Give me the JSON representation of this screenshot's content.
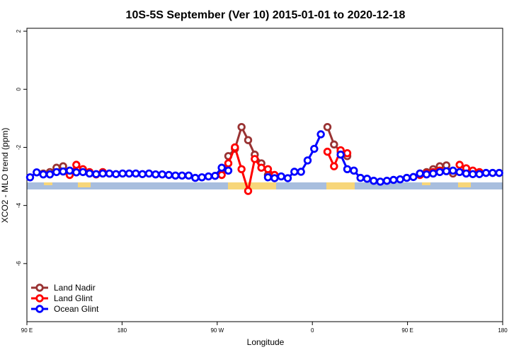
{
  "chart_data": {
    "type": "line",
    "title": "10S-5S September (Ver 10)   2015-01-01 to 2020-12-18",
    "x_label": "Longitude",
    "y_label": "XCO2 - MLO trend (ppm)",
    "xlim": [
      90,
      540
    ],
    "ylim": [
      -8,
      2.1
    ],
    "xticks": [
      {
        "value": 90,
        "label": "90 E"
      },
      {
        "value": 180,
        "label": "180"
      },
      {
        "value": 270,
        "label": "90 W"
      },
      {
        "value": 360,
        "label": "0"
      },
      {
        "value": 450,
        "label": "90 E"
      },
      {
        "value": 540,
        "label": "180"
      }
    ],
    "yticks": [
      -6,
      -4,
      -2,
      0,
      2
    ],
    "legend": "bottom-left",
    "series": [
      {
        "name": "Land Nadir",
        "color": "#993333",
        "x": [
          105.5,
          111.75,
          118,
          124.25,
          130.5,
          280.5,
          286.75,
          293,
          299.25,
          305.5,
          311.75,
          318,
          330.5,
          374.25,
          380.5,
          386.75,
          393,
          400,
          461.75,
          468,
          474.25,
          480.5,
          486.75,
          493
        ],
        "values": [
          -2.9,
          -2.85,
          -2.7,
          -2.65,
          null,
          -2.3,
          -2.05,
          -1.3,
          -1.75,
          -2.25,
          -2.55,
          -2.95,
          null,
          -1.3,
          -1.9,
          -2.15,
          -2.3,
          null,
          -2.9,
          -2.85,
          -2.75,
          -2.65,
          -2.62,
          -2.9
        ]
      },
      {
        "name": "Land Glint",
        "color": "#ff0000",
        "x": [
          130.5,
          136.75,
          143,
          149.25,
          155.5,
          161.75,
          200,
          274.25,
          280.5,
          286.75,
          293,
          299.25,
          305.5,
          311.75,
          318,
          324.25,
          340,
          374.25,
          380.5,
          386.75,
          393,
          420,
          461.75,
          468,
          474.25,
          480.5,
          486.75,
          499.25,
          505.5,
          511.75,
          518
        ],
        "values": [
          -2.95,
          -2.6,
          -2.75,
          -2.85,
          -2.93,
          -2.85,
          null,
          -2.95,
          -2.55,
          -2.0,
          -2.75,
          -3.5,
          -2.4,
          -2.7,
          -2.75,
          -2.95,
          null,
          -2.15,
          -2.65,
          -2.1,
          -2.2,
          null,
          -2.95,
          -2.9,
          -2.85,
          -2.8,
          null,
          -2.6,
          -2.72,
          -2.8,
          -2.85
        ]
      },
      {
        "name": "Ocean Glint",
        "color": "#0000ff",
        "x": [
          93,
          99.25,
          105.5,
          111.75,
          118,
          124.25,
          130.5,
          136.75,
          143,
          149.25,
          155.5,
          161.75,
          168,
          174.25,
          180.5,
          186.75,
          193,
          199.25,
          205.5,
          211.75,
          218,
          224.25,
          230.5,
          236.75,
          243,
          249.25,
          255.5,
          261.75,
          268,
          274.25,
          280.5,
          286.75,
          318,
          324.25,
          330.5,
          336.75,
          343,
          349.25,
          355.5,
          361.75,
          368,
          374.25,
          386.75,
          393,
          399.25,
          405.5,
          411.75,
          418,
          424.25,
          430.5,
          436.75,
          443,
          449.25,
          455.5,
          461.75,
          468,
          474.25,
          480.5,
          486.75,
          493,
          499.25,
          505.5,
          511.75,
          518,
          524.25,
          530.5,
          536.75
        ],
        "values": [
          -3.03,
          -2.86,
          -2.93,
          -2.93,
          -2.85,
          -2.83,
          -2.8,
          -2.86,
          -2.85,
          -2.9,
          -2.92,
          -2.9,
          -2.9,
          -2.92,
          -2.9,
          -2.9,
          -2.9,
          -2.92,
          -2.9,
          -2.93,
          -2.93,
          -2.95,
          -2.97,
          -2.97,
          -2.97,
          -3.05,
          -3.03,
          -3.0,
          -2.98,
          -2.7,
          -2.8,
          null,
          -3.03,
          -3.06,
          -3.0,
          -3.06,
          -2.84,
          -2.84,
          -2.45,
          -2.05,
          -1.55,
          null,
          -2.25,
          -2.75,
          -2.8,
          -3.05,
          -3.08,
          -3.15,
          -3.18,
          -3.15,
          -3.12,
          -3.1,
          -3.05,
          -3.02,
          -2.9,
          -2.93,
          -2.9,
          -2.85,
          -2.82,
          -2.8,
          -2.85,
          -2.9,
          -2.92,
          -2.92,
          -2.88,
          -2.88,
          -2.88
        ]
      }
    ]
  }
}
